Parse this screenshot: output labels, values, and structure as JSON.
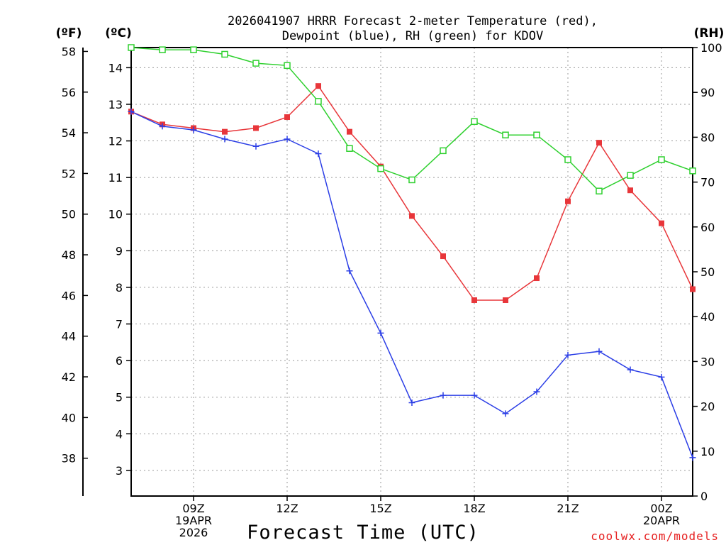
{
  "chart_data": {
    "type": "line",
    "title_line1": "2026041907 HRRR Forecast 2-meter Temperature (red),",
    "title_line2": "Dewpoint (blue), RH (green) for KDOV",
    "unit_f": "(ºF)",
    "unit_c": "(ºC)",
    "unit_rh": "(RH)",
    "xlabel": "Forecast Time (UTC)",
    "credit": "coolwx.com/models",
    "hours": [
      7,
      8,
      9,
      10,
      11,
      12,
      13,
      14,
      15,
      16,
      17,
      18,
      19,
      20,
      21,
      22,
      23,
      24,
      25
    ],
    "x_range": [
      7,
      25
    ],
    "x_ticks": [
      {
        "hour": 9,
        "lines": [
          "09Z",
          "19APR",
          "2026"
        ]
      },
      {
        "hour": 12,
        "lines": [
          "12Z"
        ]
      },
      {
        "hour": 15,
        "lines": [
          "15Z"
        ]
      },
      {
        "hour": 18,
        "lines": [
          "18Z"
        ]
      },
      {
        "hour": 21,
        "lines": [
          "21Z"
        ]
      },
      {
        "hour": 24,
        "lines": [
          "00Z",
          "20APR"
        ]
      }
    ],
    "c_range": [
      2.3,
      14.55
    ],
    "c_ticks": [
      "3",
      "4",
      "5",
      "6",
      "7",
      "8",
      "9",
      "10",
      "11",
      "12",
      "13",
      "14"
    ],
    "f_ticks": [
      "38",
      "40",
      "42",
      "44",
      "46",
      "48",
      "50",
      "52",
      "54",
      "56",
      "58"
    ],
    "rh_range": [
      0,
      100
    ],
    "rh_ticks": [
      "0",
      "10",
      "20",
      "30",
      "40",
      "50",
      "60",
      "70",
      "80",
      "90",
      "100"
    ],
    "series": [
      {
        "name": "Temperature",
        "color": "#e8363a",
        "marker": "square-filled",
        "axis": "celsius",
        "values": [
          12.8,
          12.45,
          12.35,
          12.25,
          12.35,
          12.65,
          13.5,
          12.25,
          11.3,
          9.95,
          8.85,
          7.65,
          7.65,
          8.25,
          10.35,
          11.95,
          10.65,
          9.75,
          7.95
        ]
      },
      {
        "name": "Dewpoint",
        "color": "#2b3ee6",
        "marker": "plus",
        "axis": "celsius",
        "values": [
          12.8,
          12.4,
          12.3,
          12.05,
          11.85,
          12.05,
          11.65,
          8.45,
          6.75,
          4.85,
          5.05,
          5.05,
          4.55,
          5.15,
          6.15,
          6.25,
          5.75,
          5.55,
          3.35
        ]
      },
      {
        "name": "RH",
        "color": "#2ed02e",
        "marker": "square-open",
        "axis": "rh",
        "values": [
          100,
          99.5,
          99.5,
          98.5,
          96.5,
          96,
          88,
          77.5,
          73,
          70.5,
          77,
          83.5,
          80.5,
          80.5,
          75,
          68,
          71.5,
          75,
          72.5
        ]
      }
    ]
  }
}
